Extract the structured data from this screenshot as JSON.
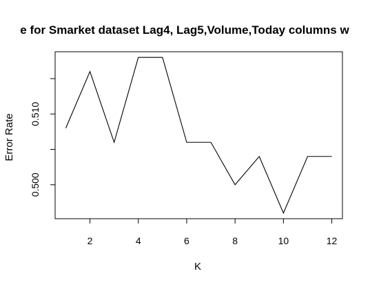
{
  "chart_data": {
    "type": "line",
    "title": "e for Smarket dataset Lag4, Lag5,Volume,Today columns w",
    "xlabel": "K",
    "ylabel": "Error Rate",
    "x": [
      1,
      2,
      3,
      4,
      5,
      6,
      7,
      8,
      9,
      10,
      11,
      12
    ],
    "series": [
      {
        "values": [
          0.508,
          0.516,
          0.506,
          0.518,
          0.518,
          0.506,
          0.506,
          0.5,
          0.504,
          0.496,
          0.504,
          0.504
        ]
      }
    ],
    "xlim": [
      0.56,
      12.44
    ],
    "ylim": [
      0.4952,
      0.5188
    ],
    "xticks": [
      2,
      4,
      6,
      8,
      10,
      12
    ],
    "xtick_labels": [
      "2",
      "4",
      "6",
      "8",
      "10",
      "12"
    ],
    "yticks": [
      0.5,
      0.505,
      0.51,
      0.515
    ],
    "ytick_labels": [
      "0.500",
      "",
      "0.510",
      ""
    ],
    "grid": false,
    "line_color": "#000000"
  }
}
